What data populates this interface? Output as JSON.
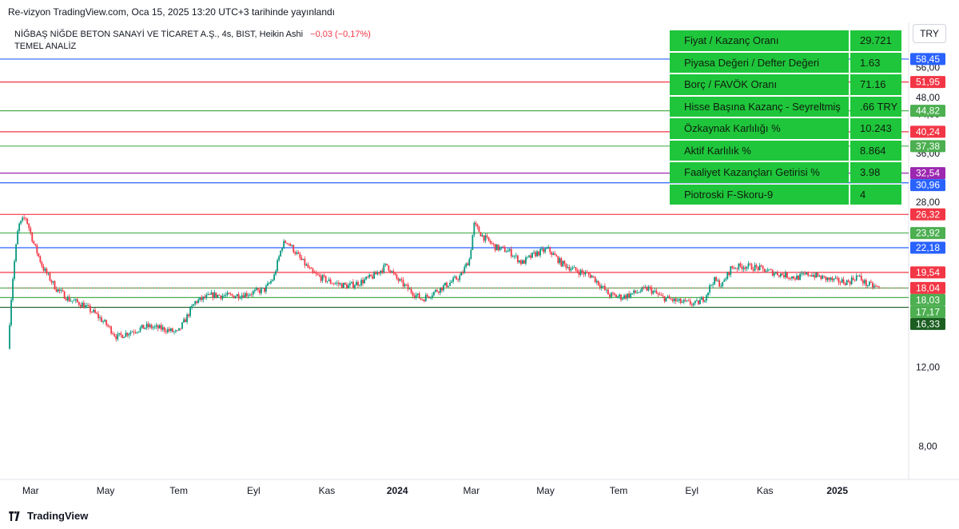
{
  "header": {
    "published_text": "Re-vizyon TradingView.com, Oca 15, 2025 13:20 UTC+3 tarihinde yayınlandı",
    "symbol_line": "NİĞBAŞ NİĞDE BETON SANAYİ VE TİCARET A.Ş., 4s, BIST, Heikin Ashi",
    "change_text": "−0,03 (−0,17%)",
    "indicator_name": "TEMEL ANALİZ",
    "currency": "TRY"
  },
  "colors": {
    "up": "#089981",
    "down": "#f23645",
    "table_bg": "#1fc63b",
    "blue": "#2962ff",
    "red": "#f23645",
    "green": "#4caf50",
    "purple": "#9c27b0",
    "dark_green": "#1b5e20"
  },
  "fundamentals": [
    {
      "label": "Fiyat / Kazanç Oranı",
      "value": "29.721"
    },
    {
      "label": "Piyasa Değeri / Defter Değeri",
      "value": "1.63"
    },
    {
      "label": "Borç / FAVÖK Oranı",
      "value": "71.16"
    },
    {
      "label": "Hisse Başına Kazanç - Seyreltmiş",
      "value": ".66 TRY"
    },
    {
      "label": "Özkaynak Karlılığı %",
      "value": "10.243"
    },
    {
      "label": "Aktif Karlılık %",
      "value": "8.864"
    },
    {
      "label": "Faaliyet Kazançları Getirisi %",
      "value": "3.98"
    },
    {
      "label": "Piotroski F-Skoru-9",
      "value": "4"
    }
  ],
  "footer": {
    "brand": "TradingView"
  },
  "chart_data": {
    "type": "line",
    "style": "Heikin Ashi candles",
    "scale": "log",
    "ylim": [
      6.8,
      70
    ],
    "y_ticks": [
      "8,00",
      "12,00",
      "28,00",
      "36,00",
      "44,00",
      "48,00",
      "56,00"
    ],
    "y_tick_values": [
      8,
      12,
      28,
      36,
      44,
      48,
      56
    ],
    "x_ticks": [
      "Mar",
      "May",
      "Tem",
      "Eyl",
      "Kas",
      "2024",
      "Mar",
      "May",
      "Tem",
      "Eyl",
      "Kas",
      "2025"
    ],
    "x_ticks_bold": [
      false,
      false,
      false,
      false,
      false,
      true,
      false,
      false,
      false,
      false,
      false,
      true
    ],
    "x_tick_fractions": [
      0.026,
      0.112,
      0.196,
      0.282,
      0.366,
      0.447,
      0.532,
      0.617,
      0.701,
      0.785,
      0.869,
      0.952
    ],
    "levels": [
      {
        "value": 58.45,
        "label": "58,45",
        "color": "#2962ff"
      },
      {
        "value": 51.95,
        "label": "51,95",
        "color": "#f23645"
      },
      {
        "value": 44.82,
        "label": "44,82",
        "color": "#4caf50"
      },
      {
        "value": 40.24,
        "label": "40,24",
        "color": "#f23645"
      },
      {
        "value": 37.38,
        "label": "37,38",
        "color": "#4caf50"
      },
      {
        "value": 32.54,
        "label": "32,54",
        "color": "#9c27b0"
      },
      {
        "value": 30.96,
        "label": "30,96",
        "color": "#2962ff"
      },
      {
        "value": 26.32,
        "label": "26,32",
        "color": "#f23645"
      },
      {
        "value": 23.92,
        "label": "23,92",
        "color": "#4caf50"
      },
      {
        "value": 22.18,
        "label": "22,18",
        "color": "#2962ff"
      },
      {
        "value": 19.54,
        "label": "19,54",
        "color": "#f23645"
      },
      {
        "value": 18.03,
        "label": "18,03",
        "color": "#4caf50"
      },
      {
        "value": 17.17,
        "label": "17,17",
        "color": "#4caf50"
      },
      {
        "value": 16.33,
        "label": "16,33",
        "color": "#1b5e20"
      }
    ],
    "last_price": {
      "value": 18.04,
      "label": "18,04",
      "color": "#f23645"
    },
    "price_path": [
      [
        0.0,
        13.2
      ],
      [
        0.005,
        18.5
      ],
      [
        0.012,
        24.8
      ],
      [
        0.02,
        26.0
      ],
      [
        0.03,
        22.5
      ],
      [
        0.04,
        20.0
      ],
      [
        0.055,
        18.0
      ],
      [
        0.07,
        17.0
      ],
      [
        0.085,
        16.6
      ],
      [
        0.1,
        15.8
      ],
      [
        0.115,
        14.8
      ],
      [
        0.125,
        14.0
      ],
      [
        0.14,
        14.4
      ],
      [
        0.16,
        14.8
      ],
      [
        0.18,
        14.6
      ],
      [
        0.195,
        14.3
      ],
      [
        0.205,
        15.5
      ],
      [
        0.215,
        16.8
      ],
      [
        0.235,
        17.4
      ],
      [
        0.255,
        17.3
      ],
      [
        0.275,
        17.5
      ],
      [
        0.295,
        17.9
      ],
      [
        0.305,
        19.0
      ],
      [
        0.315,
        22.5
      ],
      [
        0.32,
        23.0
      ],
      [
        0.335,
        21.0
      ],
      [
        0.35,
        19.4
      ],
      [
        0.37,
        18.6
      ],
      [
        0.39,
        18.2
      ],
      [
        0.405,
        18.6
      ],
      [
        0.42,
        19.2
      ],
      [
        0.435,
        20.3
      ],
      [
        0.445,
        19.0
      ],
      [
        0.46,
        17.9
      ],
      [
        0.475,
        17.0
      ],
      [
        0.49,
        17.7
      ],
      [
        0.505,
        18.4
      ],
      [
        0.52,
        19.2
      ],
      [
        0.53,
        21.0
      ],
      [
        0.535,
        25.0
      ],
      [
        0.545,
        23.5
      ],
      [
        0.56,
        22.2
      ],
      [
        0.575,
        21.8
      ],
      [
        0.59,
        20.5
      ],
      [
        0.605,
        21.5
      ],
      [
        0.62,
        22.0
      ],
      [
        0.635,
        20.5
      ],
      [
        0.65,
        19.8
      ],
      [
        0.67,
        19.2
      ],
      [
        0.69,
        17.4
      ],
      [
        0.705,
        17.2
      ],
      [
        0.72,
        17.6
      ],
      [
        0.735,
        18.0
      ],
      [
        0.75,
        17.2
      ],
      [
        0.77,
        16.8
      ],
      [
        0.79,
        16.6
      ],
      [
        0.8,
        17.2
      ],
      [
        0.81,
        18.8
      ],
      [
        0.82,
        18.3
      ],
      [
        0.83,
        20.0
      ],
      [
        0.845,
        20.2
      ],
      [
        0.86,
        20.0
      ],
      [
        0.875,
        19.6
      ],
      [
        0.89,
        19.3
      ],
      [
        0.905,
        19.0
      ],
      [
        0.92,
        19.4
      ],
      [
        0.935,
        19.0
      ],
      [
        0.95,
        18.7
      ],
      [
        0.965,
        18.6
      ],
      [
        0.975,
        19.2
      ],
      [
        0.985,
        18.4
      ],
      [
        1.0,
        18.04
      ]
    ]
  }
}
